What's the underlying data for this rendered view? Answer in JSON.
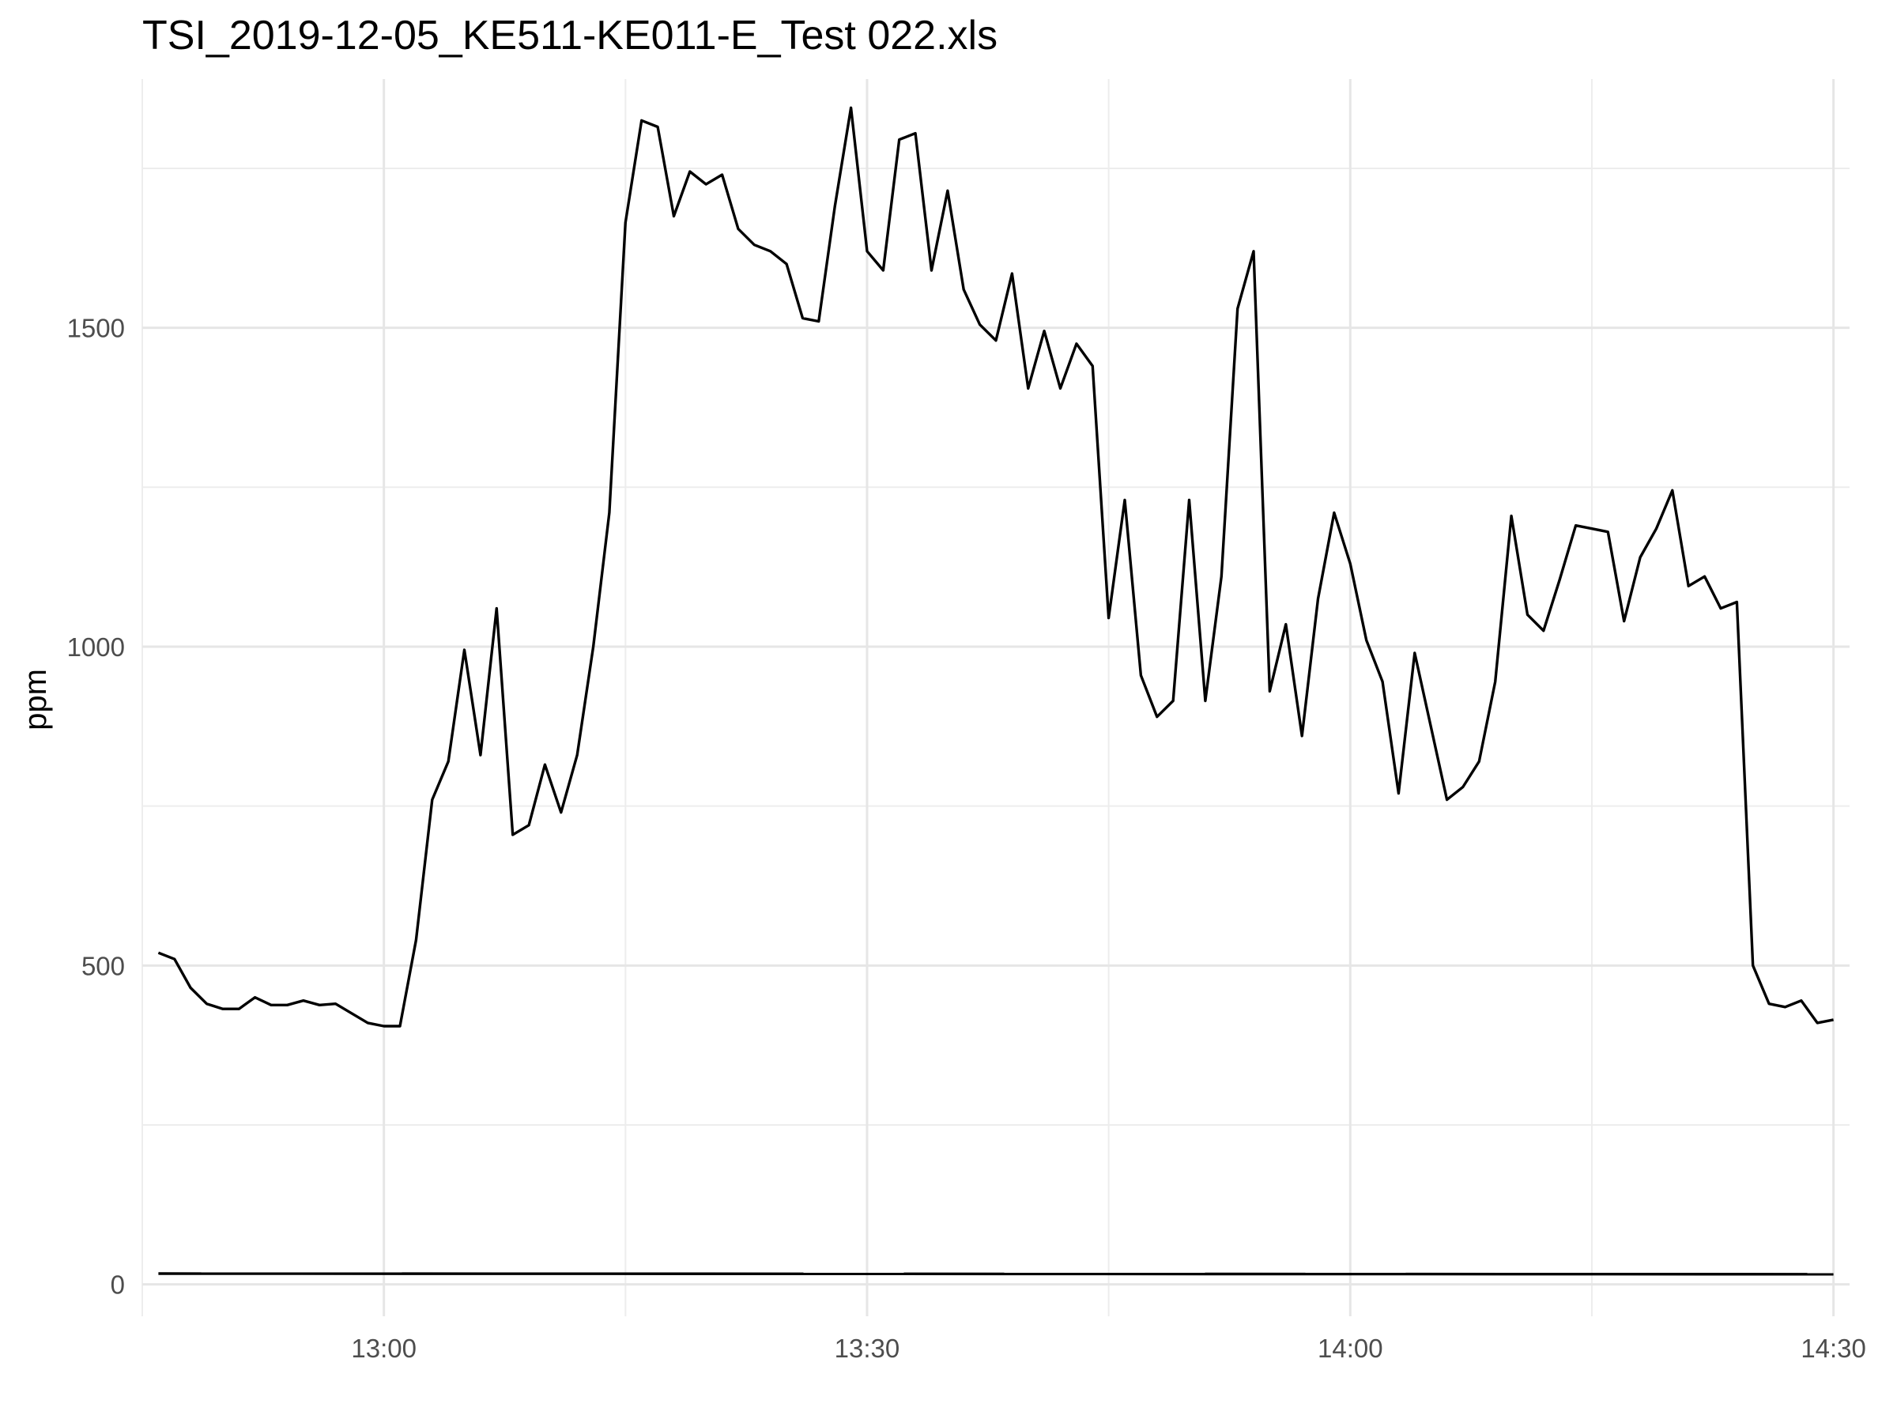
{
  "chart_data": {
    "type": "line",
    "title": "TSI_2019-12-05_KE511-KE011-E_Test 022.xls",
    "xlabel": "",
    "ylabel": "ppm",
    "xlim": [
      "12:45",
      "14:31"
    ],
    "ylim": [
      -50,
      1890
    ],
    "x_ticks": [
      "13:00",
      "13:30",
      "14:00",
      "14:30"
    ],
    "y_ticks": [
      0,
      500,
      1000,
      1500
    ],
    "grid": true,
    "line_color": "#000000",
    "series": [
      {
        "x": [
          "12:46",
          "12:47",
          "12:48",
          "12:49",
          "12:50",
          "12:51",
          "12:52",
          "12:53",
          "12:54",
          "12:55",
          "12:56",
          "12:57",
          "12:58",
          "12:59",
          "13:00",
          "13:01",
          "13:02",
          "13:03",
          "13:04",
          "13:05",
          "13:06",
          "13:07",
          "13:08",
          "13:09",
          "13:10",
          "13:11",
          "13:12",
          "13:13",
          "13:14",
          "13:15",
          "13:16",
          "13:17",
          "13:18",
          "13:19",
          "13:20",
          "13:21",
          "13:22",
          "13:23",
          "13:24",
          "13:25",
          "13:26",
          "13:27",
          "13:28",
          "13:29",
          "13:30",
          "13:31",
          "13:32",
          "13:33",
          "13:34",
          "13:35",
          "13:36",
          "13:37",
          "13:38",
          "13:39",
          "13:40",
          "13:41",
          "13:42",
          "13:43",
          "13:44",
          "13:45",
          "13:46",
          "13:47",
          "13:48",
          "13:49",
          "13:50",
          "13:51",
          "13:52",
          "13:53",
          "13:54",
          "13:55",
          "13:56",
          "13:57",
          "13:58",
          "13:59",
          "14:00",
          "14:01",
          "14:02",
          "14:03",
          "14:04",
          "14:05",
          "14:06",
          "14:07",
          "14:08",
          "14:09",
          "14:10",
          "14:11",
          "14:12",
          "14:13",
          "14:14",
          "14:15",
          "14:16",
          "14:17",
          "14:18",
          "14:19",
          "14:20",
          "14:21",
          "14:22",
          "14:23",
          "14:24",
          "14:25",
          "14:26",
          "14:27",
          "14:28",
          "14:29",
          "14:30"
        ],
        "values": [
          520,
          510,
          465,
          440,
          432,
          432,
          450,
          438,
          438,
          445,
          438,
          440,
          425,
          410,
          405,
          405,
          540,
          760,
          820,
          995,
          830,
          1060,
          705,
          720,
          815,
          740,
          830,
          1000,
          1210,
          1665,
          1825,
          1815,
          1675,
          1745,
          1725,
          1740,
          1655,
          1630,
          1620,
          1600,
          1515,
          1510,
          1690,
          1845,
          1620,
          1590,
          1795,
          1805,
          1590,
          1715,
          1560,
          1505,
          1480,
          1585,
          1405,
          1495,
          1405,
          1475,
          1440,
          1045,
          1230,
          955,
          890,
          915,
          1230,
          915,
          1110,
          1530,
          1620,
          930,
          1035,
          860,
          1075,
          1210,
          1130,
          1010,
          945,
          770,
          990,
          875,
          760,
          780,
          820,
          945,
          1205,
          1050,
          1025,
          1105,
          1190,
          1185,
          1180,
          1040,
          1140,
          1185,
          1245,
          1095,
          1110,
          1060,
          1070,
          500,
          440,
          435,
          445,
          410,
          415
        ]
      },
      {
        "x": [
          "12:46",
          "14:30"
        ],
        "values": [
          17,
          16
        ]
      }
    ]
  }
}
